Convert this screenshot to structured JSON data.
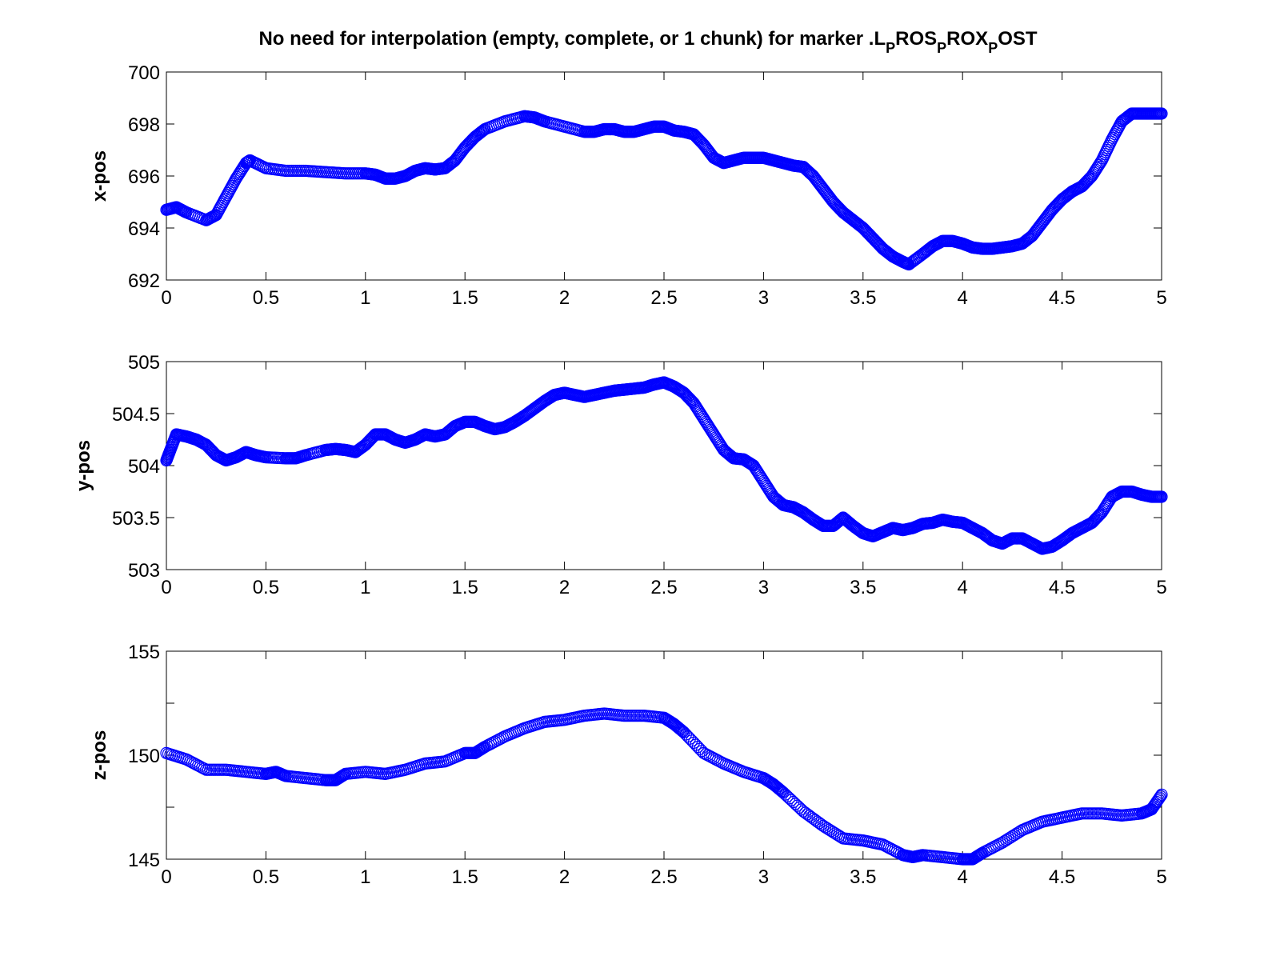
{
  "figure": {
    "title_main": "No need for interpolation (empty, complete, or 1 chunk) for marker .L",
    "title_parts": [
      {
        "text": "No need for interpolation (empty, complete, or 1 chunk) for marker .L",
        "sub": false
      },
      {
        "text": "P",
        "sub": true
      },
      {
        "text": "ROS",
        "sub": false
      },
      {
        "text": "P",
        "sub": true
      },
      {
        "text": "ROX",
        "sub": false
      },
      {
        "text": "P",
        "sub": true
      },
      {
        "text": "OST",
        "sub": false
      }
    ]
  },
  "colors": {
    "marker": "#0000ff",
    "axis": "#000000",
    "background": "#ffffff"
  },
  "chart_data": [
    {
      "type": "scatter",
      "marker": "circle",
      "ylabel": "x-pos",
      "xlabel": "",
      "xlim": [
        0,
        5
      ],
      "ylim": [
        692,
        700
      ],
      "xticks": [
        "0",
        "0.5",
        "1",
        "1.5",
        "2",
        "2.5",
        "3",
        "3.5",
        "4",
        "4.5",
        "5"
      ],
      "yticks": [
        "692",
        "694",
        "696",
        "698",
        "700"
      ],
      "grid": false,
      "x": [
        0,
        0.05,
        0.1,
        0.2,
        0.25,
        0.3,
        0.35,
        0.4,
        0.42,
        0.5,
        0.6,
        0.7,
        0.8,
        0.9,
        1.0,
        1.05,
        1.1,
        1.15,
        1.2,
        1.25,
        1.3,
        1.35,
        1.4,
        1.45,
        1.5,
        1.55,
        1.6,
        1.7,
        1.8,
        1.85,
        1.9,
        2.0,
        2.1,
        2.15,
        2.2,
        2.25,
        2.3,
        2.35,
        2.4,
        2.45,
        2.5,
        2.55,
        2.6,
        2.65,
        2.7,
        2.75,
        2.8,
        2.85,
        2.9,
        2.95,
        3.0,
        3.05,
        3.1,
        3.15,
        3.2,
        3.25,
        3.3,
        3.35,
        3.4,
        3.45,
        3.5,
        3.55,
        3.6,
        3.65,
        3.7,
        3.73,
        3.8,
        3.85,
        3.9,
        3.95,
        4.0,
        4.05,
        4.1,
        4.15,
        4.2,
        4.25,
        4.3,
        4.35,
        4.4,
        4.45,
        4.5,
        4.55,
        4.6,
        4.65,
        4.7,
        4.75,
        4.8,
        4.85,
        4.9,
        4.95,
        5.0
      ],
      "y": [
        694.7,
        694.8,
        694.6,
        694.3,
        694.5,
        695.2,
        695.9,
        696.5,
        696.6,
        696.3,
        696.2,
        696.2,
        696.15,
        696.1,
        696.1,
        696.05,
        695.9,
        695.9,
        696.0,
        696.2,
        696.3,
        696.25,
        696.3,
        696.6,
        697.1,
        697.5,
        697.8,
        698.1,
        698.3,
        698.25,
        698.1,
        697.9,
        697.7,
        697.7,
        697.8,
        697.8,
        697.7,
        697.7,
        697.8,
        697.9,
        697.9,
        697.75,
        697.7,
        697.6,
        697.2,
        696.7,
        696.5,
        696.6,
        696.7,
        696.7,
        696.7,
        696.6,
        696.5,
        696.4,
        696.35,
        696.0,
        695.5,
        695.0,
        694.6,
        694.3,
        694.0,
        693.6,
        693.2,
        692.9,
        692.7,
        692.6,
        693.0,
        693.3,
        693.5,
        693.5,
        693.4,
        693.25,
        693.2,
        693.2,
        693.25,
        693.3,
        693.4,
        693.7,
        694.2,
        694.7,
        695.1,
        695.4,
        695.6,
        696.0,
        696.6,
        697.4,
        698.1,
        698.4,
        698.4,
        698.4,
        698.4
      ]
    },
    {
      "type": "scatter",
      "marker": "circle",
      "ylabel": "y-pos",
      "xlabel": "",
      "xlim": [
        0,
        5
      ],
      "ylim": [
        503,
        505
      ],
      "xticks": [
        "0",
        "0.5",
        "1",
        "1.5",
        "2",
        "2.5",
        "3",
        "3.5",
        "4",
        "4.5",
        "5"
      ],
      "yticks": [
        "503",
        "503.5",
        "504",
        "504.5",
        "505"
      ],
      "grid": false,
      "x": [
        0,
        0.02,
        0.05,
        0.1,
        0.15,
        0.2,
        0.25,
        0.3,
        0.35,
        0.4,
        0.45,
        0.5,
        0.6,
        0.65,
        0.7,
        0.8,
        0.85,
        0.9,
        0.95,
        1.0,
        1.05,
        1.1,
        1.15,
        1.2,
        1.25,
        1.3,
        1.35,
        1.4,
        1.45,
        1.5,
        1.55,
        1.6,
        1.65,
        1.7,
        1.75,
        1.8,
        1.85,
        1.9,
        1.95,
        2.0,
        2.05,
        2.1,
        2.15,
        2.2,
        2.25,
        2.3,
        2.35,
        2.4,
        2.45,
        2.5,
        2.55,
        2.6,
        2.65,
        2.7,
        2.75,
        2.8,
        2.85,
        2.9,
        2.95,
        3.0,
        3.05,
        3.1,
        3.15,
        3.2,
        3.25,
        3.3,
        3.35,
        3.4,
        3.45,
        3.5,
        3.55,
        3.6,
        3.65,
        3.7,
        3.75,
        3.8,
        3.85,
        3.9,
        3.95,
        4.0,
        4.05,
        4.1,
        4.15,
        4.2,
        4.25,
        4.3,
        4.35,
        4.4,
        4.45,
        4.5,
        4.55,
        4.6,
        4.65,
        4.7,
        4.75,
        4.8,
        4.85,
        4.9,
        4.95,
        5.0
      ],
      "y": [
        504.05,
        504.15,
        504.3,
        504.28,
        504.25,
        504.2,
        504.1,
        504.05,
        504.08,
        504.13,
        504.1,
        504.08,
        504.07,
        504.07,
        504.1,
        504.15,
        504.16,
        504.15,
        504.13,
        504.2,
        504.3,
        504.3,
        504.25,
        504.22,
        504.25,
        504.3,
        504.28,
        504.3,
        504.38,
        504.42,
        504.42,
        504.38,
        504.35,
        504.37,
        504.42,
        504.48,
        504.55,
        504.62,
        504.68,
        504.7,
        504.68,
        504.66,
        504.68,
        504.7,
        504.72,
        504.73,
        504.74,
        504.75,
        504.78,
        504.8,
        504.76,
        504.7,
        504.6,
        504.45,
        504.3,
        504.15,
        504.07,
        504.06,
        504.0,
        503.85,
        503.7,
        503.62,
        503.6,
        503.55,
        503.48,
        503.42,
        503.42,
        503.5,
        503.42,
        503.35,
        503.32,
        503.36,
        503.4,
        503.38,
        503.4,
        503.44,
        503.45,
        503.48,
        503.46,
        503.45,
        503.4,
        503.35,
        503.28,
        503.25,
        503.3,
        503.3,
        503.25,
        503.2,
        503.22,
        503.28,
        503.35,
        503.4,
        503.45,
        503.55,
        503.7,
        503.75,
        503.75,
        503.72,
        503.7,
        503.7
      ]
    },
    {
      "type": "scatter",
      "marker": "circle",
      "ylabel": "z-pos",
      "xlabel": "",
      "xlim": [
        0,
        5
      ],
      "ylim": [
        145,
        155
      ],
      "xticks": [
        "0",
        "0.5",
        "1",
        "1.5",
        "2",
        "2.5",
        "3",
        "3.5",
        "4",
        "4.5",
        "5"
      ],
      "yticks": [
        "145",
        "",
        "150",
        "",
        "155"
      ],
      "grid": false,
      "x": [
        0,
        0.1,
        0.2,
        0.3,
        0.4,
        0.5,
        0.55,
        0.6,
        0.7,
        0.8,
        0.85,
        0.9,
        1.0,
        1.1,
        1.2,
        1.3,
        1.4,
        1.5,
        1.55,
        1.6,
        1.7,
        1.8,
        1.9,
        2.0,
        2.1,
        2.2,
        2.3,
        2.4,
        2.5,
        2.55,
        2.6,
        2.7,
        2.8,
        2.9,
        3.0,
        3.05,
        3.1,
        3.2,
        3.3,
        3.4,
        3.5,
        3.6,
        3.7,
        3.75,
        3.8,
        3.9,
        4.0,
        4.05,
        4.1,
        4.2,
        4.3,
        4.4,
        4.5,
        4.6,
        4.7,
        4.8,
        4.9,
        4.95,
        5.0
      ],
      "y": [
        150.1,
        149.8,
        149.3,
        149.3,
        149.2,
        149.1,
        149.2,
        149.0,
        148.9,
        148.8,
        148.8,
        149.1,
        149.2,
        149.1,
        149.3,
        149.6,
        149.7,
        150.1,
        150.1,
        150.4,
        150.9,
        151.3,
        151.6,
        151.7,
        151.9,
        152.0,
        151.9,
        151.9,
        151.8,
        151.5,
        151.1,
        150.1,
        149.6,
        149.2,
        148.9,
        148.6,
        148.2,
        147.3,
        146.6,
        146.0,
        145.9,
        145.7,
        145.2,
        145.1,
        145.2,
        145.1,
        145.0,
        145.0,
        145.3,
        145.8,
        146.4,
        146.8,
        147.0,
        147.2,
        147.2,
        147.1,
        147.2,
        147.4,
        148.1
      ]
    }
  ]
}
